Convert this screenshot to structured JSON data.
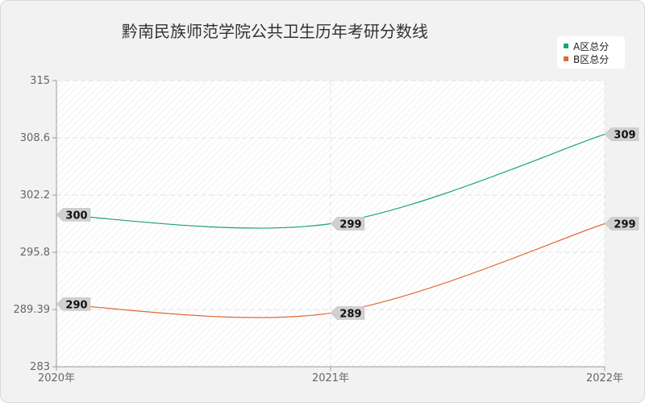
{
  "chart_data": {
    "type": "line",
    "title": "黔南民族师范学院公共卫生历年考研分数线",
    "categories": [
      "2020年",
      "2021年",
      "2022年"
    ],
    "series": [
      {
        "name": "A区总分",
        "values": [
          300,
          299,
          309
        ],
        "color": "#1aa37a"
      },
      {
        "name": "B区总分",
        "values": [
          290,
          289,
          299
        ],
        "color": "#e0693a"
      }
    ],
    "ylim": [
      283,
      315
    ],
    "yticks": [
      283,
      289.39,
      295.8,
      302.2,
      308.6,
      315
    ],
    "ytick_labels": [
      "283",
      "289.39",
      "295.8",
      "302.2",
      "308.6",
      "315"
    ],
    "grid": true,
    "legend": "top-right",
    "xlabel": "",
    "ylabel": ""
  }
}
